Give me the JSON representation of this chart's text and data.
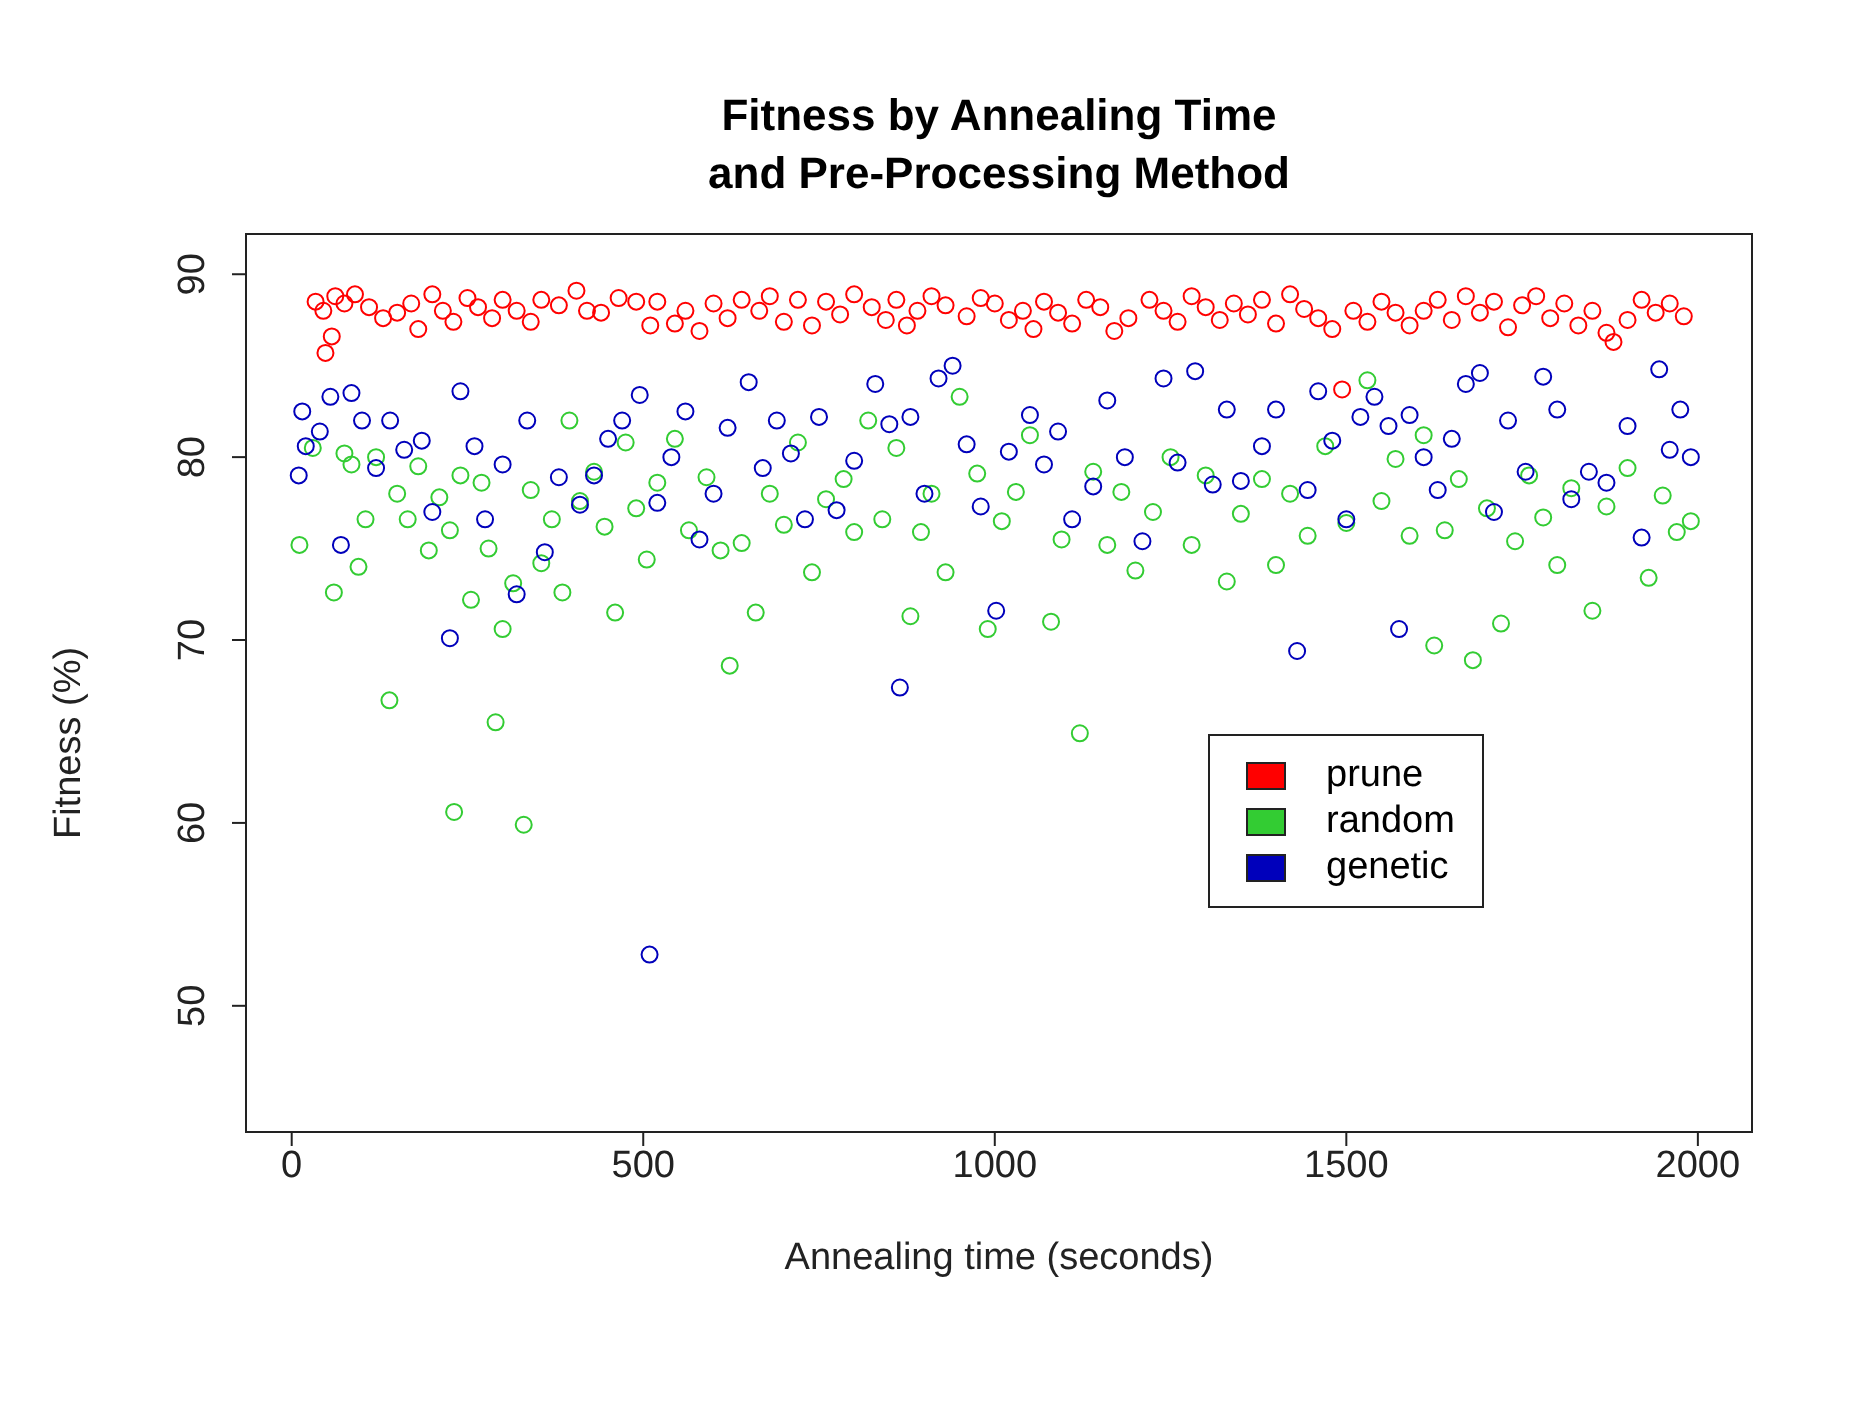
{
  "chart_data": {
    "type": "scatter",
    "title": "Fitness by Annealing Time\nand Pre-Processing Method",
    "xlabel": "Annealing time (seconds)",
    "ylabel": "Fitness (%)",
    "xlim": [
      -65,
      2077
    ],
    "ylim": [
      43.1,
      92.2
    ],
    "xticks": [
      0,
      500,
      1000,
      1500,
      2000
    ],
    "yticks": [
      50,
      60,
      70,
      80,
      90
    ],
    "grid": false,
    "legend": "right",
    "marker": "circle",
    "series": [
      {
        "name": "prune",
        "color": "#ff0000",
        "x": [
          34,
          45,
          48,
          57,
          62,
          75,
          90,
          110,
          130,
          150,
          170,
          180,
          200,
          215,
          230,
          250,
          265,
          285,
          300,
          320,
          340,
          355,
          380,
          405,
          420,
          440,
          465,
          490,
          510,
          520,
          545,
          560,
          580,
          600,
          620,
          640,
          665,
          680,
          700,
          720,
          740,
          760,
          780,
          800,
          825,
          845,
          860,
          875,
          890,
          910,
          930,
          960,
          980,
          1000,
          1020,
          1040,
          1055,
          1070,
          1090,
          1110,
          1130,
          1150,
          1170,
          1190,
          1220,
          1240,
          1260,
          1280,
          1300,
          1320,
          1340,
          1360,
          1380,
          1400,
          1420,
          1440,
          1460,
          1480,
          1494,
          1510,
          1530,
          1550,
          1570,
          1590,
          1610,
          1630,
          1650,
          1670,
          1690,
          1710,
          1730,
          1750,
          1770,
          1790,
          1810,
          1830,
          1850,
          1870,
          1880,
          1900,
          1920,
          1940,
          1960,
          1980
        ],
        "values": [
          88.5,
          88.0,
          85.7,
          86.6,
          88.8,
          88.4,
          88.9,
          88.2,
          87.6,
          87.9,
          88.4,
          87.0,
          88.9,
          88.0,
          87.4,
          88.7,
          88.2,
          87.6,
          88.6,
          88.0,
          87.4,
          88.6,
          88.3,
          89.1,
          88.0,
          87.9,
          88.7,
          88.5,
          87.2,
          88.5,
          87.3,
          88.0,
          86.9,
          88.4,
          87.6,
          88.6,
          88.0,
          88.8,
          87.4,
          88.6,
          87.2,
          88.5,
          87.8,
          88.9,
          88.2,
          87.5,
          88.6,
          87.2,
          88.0,
          88.8,
          88.3,
          87.7,
          88.7,
          88.4,
          87.5,
          88.0,
          87.0,
          88.5,
          87.9,
          87.3,
          88.6,
          88.2,
          86.9,
          87.6,
          88.6,
          88.0,
          87.4,
          88.8,
          88.2,
          87.5,
          88.4,
          87.8,
          88.6,
          87.3,
          88.9,
          88.1,
          87.6,
          87.0,
          83.7,
          88.0,
          87.4,
          88.5,
          87.9,
          87.2,
          88.0,
          88.6,
          87.5,
          88.8,
          87.9,
          88.5,
          87.1,
          88.3,
          88.8,
          87.6,
          88.4,
          87.2,
          88.0,
          86.8,
          86.3,
          87.5,
          88.6,
          87.9,
          88.4,
          87.7
        ]
      },
      {
        "name": "random",
        "color": "#33cc33",
        "x": [
          11,
          30,
          60,
          75,
          85,
          95,
          105,
          120,
          139,
          150,
          165,
          180,
          195,
          210,
          225,
          231,
          240,
          255,
          270,
          280,
          290,
          300,
          315,
          330,
          340,
          355,
          370,
          385,
          395,
          410,
          430,
          445,
          460,
          475,
          490,
          505,
          520,
          545,
          565,
          590,
          610,
          623,
          640,
          660,
          680,
          700,
          720,
          740,
          760,
          785,
          800,
          820,
          840,
          860,
          880,
          895,
          910,
          930,
          950,
          975,
          990,
          1010,
          1030,
          1050,
          1080,
          1095,
          1121,
          1140,
          1160,
          1180,
          1200,
          1225,
          1250,
          1280,
          1300,
          1330,
          1350,
          1380,
          1400,
          1420,
          1445,
          1470,
          1500,
          1530,
          1550,
          1570,
          1590,
          1610,
          1625,
          1640,
          1660,
          1680,
          1700,
          1720,
          1740,
          1760,
          1780,
          1800,
          1820,
          1850,
          1870,
          1900,
          1930,
          1950,
          1970,
          1990
        ],
        "values": [
          75.2,
          80.5,
          72.6,
          80.2,
          79.6,
          74.0,
          76.6,
          80.0,
          66.7,
          78.0,
          76.6,
          79.5,
          74.9,
          77.8,
          76.0,
          60.6,
          79.0,
          72.2,
          78.6,
          75.0,
          65.5,
          70.6,
          73.1,
          59.9,
          78.2,
          74.2,
          76.6,
          72.6,
          82.0,
          77.6,
          79.2,
          76.2,
          71.5,
          80.8,
          77.2,
          74.4,
          78.6,
          81.0,
          76.0,
          78.9,
          74.9,
          68.6,
          75.3,
          71.5,
          78.0,
          76.3,
          80.8,
          73.7,
          77.7,
          78.8,
          75.9,
          82.0,
          76.6,
          80.5,
          71.3,
          75.9,
          78.0,
          73.7,
          83.3,
          79.1,
          70.6,
          76.5,
          78.1,
          81.2,
          71.0,
          75.5,
          64.9,
          79.2,
          75.2,
          78.1,
          73.8,
          77.0,
          80.0,
          75.2,
          79.0,
          73.2,
          76.9,
          78.8,
          74.1,
          78.0,
          75.7,
          80.6,
          76.4,
          84.2,
          77.6,
          79.9,
          75.7,
          81.2,
          69.7,
          76.0,
          78.8,
          68.9,
          77.2,
          70.9,
          75.4,
          79.0,
          76.7,
          74.1,
          78.3,
          71.6,
          77.3,
          79.4,
          73.4,
          77.9,
          75.9,
          76.5
        ]
      },
      {
        "name": "genetic",
        "color": "#0000bb",
        "x": [
          10,
          15,
          20,
          40,
          55,
          70,
          85,
          100,
          120,
          140,
          160,
          185,
          200,
          225,
          240,
          260,
          275,
          300,
          320,
          335,
          360,
          380,
          410,
          430,
          450,
          470,
          495,
          509,
          520,
          540,
          560,
          580,
          600,
          620,
          650,
          670,
          690,
          710,
          730,
          750,
          775,
          800,
          830,
          850,
          865,
          880,
          900,
          920,
          940,
          960,
          980,
          1002,
          1020,
          1050,
          1070,
          1090,
          1110,
          1140,
          1160,
          1185,
          1210,
          1240,
          1260,
          1285,
          1310,
          1330,
          1350,
          1380,
          1400,
          1430,
          1445,
          1460,
          1480,
          1500,
          1520,
          1540,
          1560,
          1575,
          1590,
          1610,
          1630,
          1650,
          1670,
          1690,
          1710,
          1730,
          1755,
          1780,
          1800,
          1820,
          1845,
          1870,
          1900,
          1920,
          1945,
          1960,
          1975,
          1990
        ],
        "values": [
          79.0,
          82.5,
          80.6,
          81.4,
          83.3,
          75.2,
          83.5,
          82.0,
          79.4,
          82.0,
          80.4,
          80.9,
          77.0,
          70.1,
          83.6,
          80.6,
          76.6,
          79.6,
          72.5,
          82.0,
          74.8,
          78.9,
          77.4,
          79.0,
          81.0,
          82.0,
          83.4,
          52.8,
          77.5,
          80.0,
          82.5,
          75.5,
          78.0,
          81.6,
          84.1,
          79.4,
          82.0,
          80.2,
          76.6,
          82.2,
          77.1,
          79.8,
          84.0,
          81.8,
          67.4,
          82.2,
          78.0,
          84.3,
          85.0,
          80.7,
          77.3,
          71.6,
          80.3,
          82.3,
          79.6,
          81.4,
          76.6,
          78.4,
          83.1,
          80.0,
          75.4,
          84.3,
          79.7,
          84.7,
          78.5,
          82.6,
          78.7,
          80.6,
          82.6,
          69.4,
          78.2,
          83.6,
          80.9,
          76.6,
          82.2,
          83.3,
          81.7,
          70.6,
          82.3,
          80.0,
          78.2,
          81.0,
          84.0,
          84.6,
          77.0,
          82.0,
          79.2,
          84.4,
          82.6,
          77.7,
          79.2,
          78.6,
          81.7,
          75.6,
          84.8,
          80.4,
          82.6,
          80.0
        ]
      }
    ]
  }
}
